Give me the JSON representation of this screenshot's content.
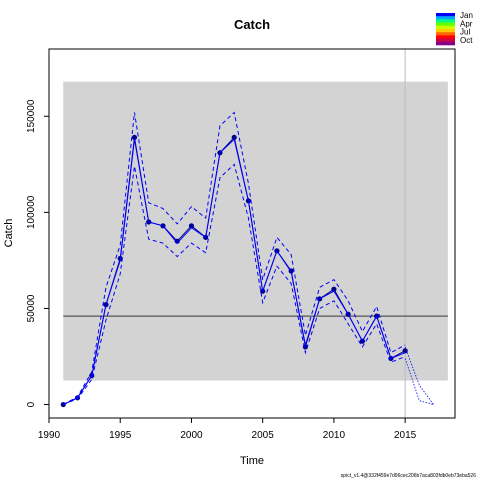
{
  "chart_data": {
    "type": "line",
    "title": "Catch",
    "xlabel": "Time",
    "ylabel": "Catch",
    "xlim": [
      1990,
      2018.5
    ],
    "ylim": [
      -7000,
      185000
    ],
    "x_ticks": [
      1990,
      1995,
      2000,
      2005,
      2010,
      2015
    ],
    "y_ticks": [
      0,
      50000,
      100000,
      150000
    ],
    "y_tick_labels": [
      "0",
      "50000",
      "100000",
      "150000"
    ],
    "shaded_band": {
      "x": [
        1991,
        2018
      ],
      "y": [
        12500,
        168000
      ],
      "color": "#d3d3d3"
    },
    "hline": {
      "y": 46000,
      "color": "#555555"
    },
    "vline": {
      "x": 2015,
      "color": "#bbbbbb"
    },
    "series": [
      {
        "name": "observed",
        "style": "solid-points",
        "color": "#00008b",
        "x": [
          1991,
          1992,
          1993,
          1994,
          1995,
          1996,
          1997,
          1998,
          1999,
          2000,
          2001,
          2002,
          2003,
          2004,
          2005,
          2006,
          2007,
          2008,
          2009,
          2010,
          2011,
          2012,
          2013,
          2014,
          2015
        ],
        "values": [
          0,
          3500,
          15000,
          52000,
          76000,
          139000,
          95000,
          93000,
          85000,
          93000,
          87000,
          131000,
          139000,
          106000,
          59000,
          80000,
          69500,
          30000,
          55000,
          60000,
          47000,
          33000,
          46000,
          24000,
          28000
        ]
      },
      {
        "name": "fit",
        "style": "solid",
        "color": "#0000ff",
        "x": [
          1991,
          1992,
          1993,
          1994,
          1995,
          1996,
          1997,
          1998,
          1999,
          2000,
          2001,
          2002,
          2003,
          2004,
          2005,
          2006,
          2007,
          2008,
          2009,
          2010,
          2011,
          2012,
          2013,
          2014,
          2015
        ],
        "values": [
          0,
          3500,
          15000,
          52000,
          75000,
          138000,
          95000,
          93000,
          84000,
          92000,
          87000,
          131000,
          138000,
          106000,
          59000,
          80000,
          69000,
          31000,
          55000,
          59000,
          47000,
          33000,
          46000,
          24000,
          27000
        ]
      },
      {
        "name": "upper",
        "style": "dashed",
        "color": "#0000ff",
        "x": [
          1991,
          1992,
          1993,
          1994,
          1995,
          1996,
          1997,
          1998,
          1999,
          2000,
          2001,
          2002,
          2003,
          2004,
          2005,
          2006,
          2007,
          2008,
          2009,
          2010,
          2011,
          2012,
          2013,
          2014,
          2015
        ],
        "values": [
          0,
          4000,
          17000,
          61000,
          83000,
          152000,
          105000,
          102000,
          94000,
          103000,
          97000,
          145000,
          152000,
          115000,
          65000,
          87000,
          78000,
          36000,
          61000,
          65000,
          54000,
          38000,
          51000,
          27000,
          31000
        ]
      },
      {
        "name": "lower",
        "style": "dashed",
        "color": "#0000ff",
        "x": [
          1991,
          1992,
          1993,
          1994,
          1995,
          1996,
          1997,
          1998,
          1999,
          2000,
          2001,
          2002,
          2003,
          2004,
          2005,
          2006,
          2007,
          2008,
          2009,
          2010,
          2011,
          2012,
          2013,
          2014,
          2015
        ],
        "values": [
          0,
          3000,
          13000,
          44000,
          68000,
          124000,
          86000,
          84000,
          77000,
          84000,
          79000,
          118000,
          125000,
          97000,
          53000,
          72000,
          63000,
          27000,
          50000,
          54000,
          42000,
          30000,
          42000,
          22000,
          25000
        ]
      },
      {
        "name": "forecast-upper",
        "style": "dotted",
        "color": "#0000ff",
        "x": [
          2015,
          2016,
          2017
        ],
        "values": [
          30000,
          10000,
          0
        ]
      },
      {
        "name": "forecast-lower",
        "style": "dotted",
        "color": "#0000ff",
        "x": [
          2015,
          2016,
          2017
        ],
        "values": [
          24000,
          2000,
          0
        ]
      }
    ],
    "legend": {
      "placement": "top-right",
      "labels": [
        "Jan",
        "Apr",
        "Jul",
        "Oct"
      ],
      "colors": [
        "#0000ff",
        "#00aaff",
        "#00ff80",
        "#66ff00",
        "#ccff00",
        "#ffcc00",
        "#ff6600",
        "#ff0000",
        "#cc0044",
        "#880088"
      ]
    },
    "footnote": "spict_v1.4@332f459e7d96cec206b7aca803fdb0eb73eba526"
  }
}
